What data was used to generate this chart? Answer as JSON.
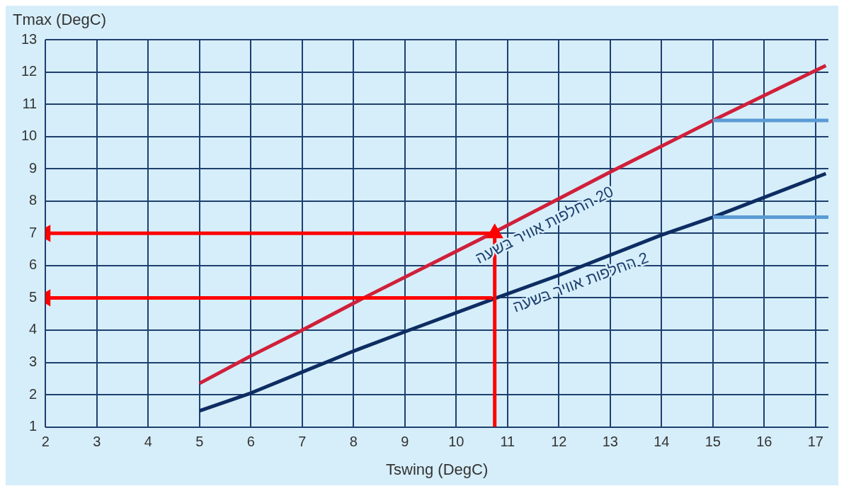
{
  "chart_data": {
    "type": "line",
    "ylabel": "Tmax (DegC)",
    "xlabel": "Tswing (DegC)",
    "xlim": [
      2,
      17.25
    ],
    "xticks": [
      2,
      3,
      4,
      5,
      6,
      7,
      8,
      9,
      10,
      11,
      12,
      13,
      14,
      15,
      16,
      17
    ],
    "ylim": [
      1,
      13
    ],
    "yticks": [
      1,
      2,
      3,
      4,
      5,
      6,
      7,
      8,
      9,
      10,
      11,
      12,
      13
    ],
    "grid": true,
    "legend": false,
    "marker": "none",
    "line_style": "solid",
    "series": [
      {
        "name": "20 החלפות אוויר בשעה",
        "color": "#d0203a",
        "x": [
          5,
          6,
          7,
          8.2,
          10.7,
          13,
          15,
          17.2
        ],
        "values": [
          2.35,
          3.2,
          4.0,
          5.0,
          7.0,
          8.9,
          10.5,
          12.2
        ]
      },
      {
        "name": "2 החלפות אוויר בשעה",
        "color": "#0d2d62",
        "x": [
          5,
          6,
          7,
          8,
          9,
          10.7,
          12,
          14,
          15,
          17.2
        ],
        "values": [
          1.5,
          2.05,
          2.7,
          3.35,
          3.95,
          4.95,
          5.7,
          6.95,
          7.5,
          8.85
        ]
      },
      {
        "color": "#5b9bd5",
        "x": [
          15,
          17.25
        ],
        "values": [
          10.5,
          10.5
        ]
      },
      {
        "color": "#5b9bd5",
        "x": [
          15,
          17.25
        ],
        "values": [
          7.5,
          7.5
        ]
      },
      {
        "color": "#ff0000",
        "x": [
          10.75,
          10.75
        ],
        "values": [
          1,
          7
        ],
        "marker": "triangle"
      },
      {
        "color": "#ff0000",
        "x": [
          10.7,
          2
        ],
        "values": [
          7,
          7
        ],
        "marker": "triangle"
      },
      {
        "color": "#ff0000",
        "x": [
          10.7,
          2
        ],
        "values": [
          5,
          5
        ],
        "marker": "triangle"
      }
    ]
  }
}
